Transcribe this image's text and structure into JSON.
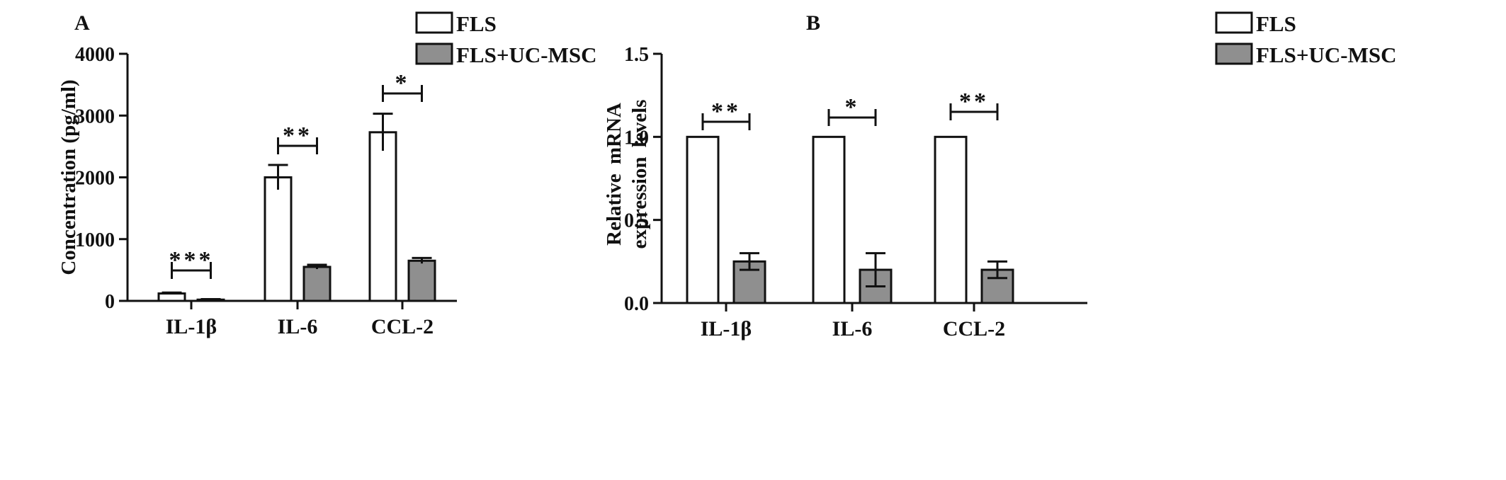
{
  "panels": [
    {
      "label": "A"
    },
    {
      "label": "B"
    }
  ],
  "colors": {
    "fls_fill": "#ffffff",
    "ucmsc_fill": "#8f8f8f",
    "stroke": "#111111"
  },
  "chart_data": [
    {
      "type": "bar",
      "panel": "A",
      "categories": [
        "IL-1β",
        "IL-6",
        "CCL-2"
      ],
      "series": [
        {
          "name": "FLS",
          "values": [
            120,
            2000,
            2730
          ],
          "errors": [
            15,
            200,
            300
          ]
        },
        {
          "name": "FLS+UC-MSC",
          "values": [
            20,
            550,
            650
          ],
          "errors": [
            8,
            35,
            45
          ]
        }
      ],
      "significance": [
        "***",
        "**",
        "*"
      ],
      "title": "",
      "xlabel": "",
      "ylabel": "Concentration (pg/ml)",
      "ylim": [
        0,
        4000
      ],
      "yticks": [
        0,
        1000,
        2000,
        3000,
        4000
      ],
      "ytick_labels": [
        "0",
        "1000",
        "2000",
        "3000",
        "4000"
      ],
      "legend": "top-right",
      "grid": false
    },
    {
      "type": "bar",
      "panel": "B",
      "categories": [
        "IL-1β",
        "IL-6",
        "CCL-2"
      ],
      "series": [
        {
          "name": "FLS",
          "values": [
            1.0,
            1.0,
            1.0
          ],
          "errors": [
            0,
            0,
            0
          ]
        },
        {
          "name": "FLS+UC-MSC",
          "values": [
            0.25,
            0.2,
            0.2
          ],
          "errors": [
            0.05,
            0.1,
            0.05
          ]
        }
      ],
      "significance": [
        "**",
        "*",
        "**"
      ],
      "title": "",
      "xlabel": "",
      "ylabel": [
        "Relative mRNA",
        "expression levels"
      ],
      "ylim": [
        0,
        1.5
      ],
      "yticks": [
        0,
        0.5,
        1.0,
        1.5
      ],
      "ytick_labels": [
        "0.0",
        "0.5",
        "1.0",
        "1.5"
      ],
      "legend": "top-right",
      "grid": false
    }
  ]
}
